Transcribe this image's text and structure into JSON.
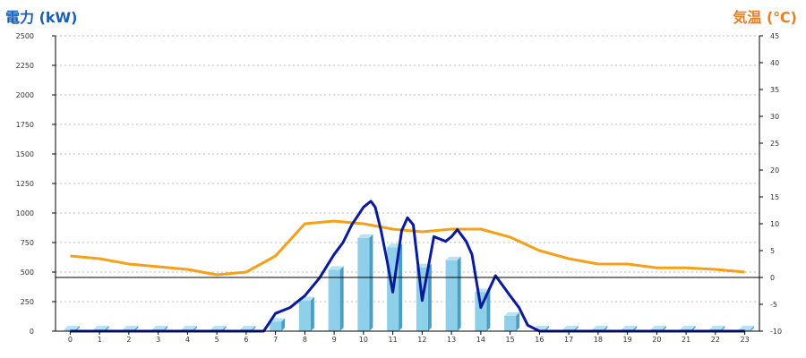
{
  "chart_data": {
    "type": "bar",
    "left_axis_title": "電力 (kW)",
    "right_axis_title": "気温 (℃)",
    "colors": {
      "left_title": "#1a5fb4",
      "right_title": "#e67e22",
      "bar_front": "#8ecfe9",
      "bar_side": "#4a9ec4",
      "bar_top": "#b9e3f3",
      "power_line": "#0a1a9c",
      "temp_line": "#f6a01a",
      "grid": "#bbbbbb",
      "axis": "#000000"
    },
    "categories": [
      "0",
      "1",
      "2",
      "3",
      "4",
      "5",
      "6",
      "7",
      "8",
      "9",
      "10",
      "11",
      "12",
      "13",
      "14",
      "15",
      "16",
      "17",
      "18",
      "19",
      "20",
      "21",
      "22",
      "23"
    ],
    "left_ticks": [
      "0",
      "250",
      "500",
      "750",
      "1000",
      "1250",
      "1500",
      "1750",
      "2000",
      "2250",
      "2500"
    ],
    "right_ticks": [
      "-10",
      "-5",
      "0",
      "5",
      "10",
      "15",
      "20",
      "25",
      "30",
      "35",
      "40",
      "45"
    ],
    "ylim_left": [
      0,
      2500
    ],
    "ylim_right": [
      -10,
      45
    ],
    "bars": [
      0,
      0,
      0,
      0,
      0,
      0,
      0,
      80,
      260,
      520,
      790,
      710,
      540,
      600,
      330,
      130,
      0,
      0,
      0,
      0,
      0,
      0,
      0,
      0
    ],
    "power_line": {
      "x": [
        0,
        1,
        2,
        3,
        4,
        5,
        6,
        6.6,
        7,
        7.5,
        8,
        8.5,
        9,
        9.3,
        9.6,
        10,
        10.25,
        10.4,
        10.6,
        10.8,
        11,
        11.3,
        11.5,
        11.7,
        12,
        12.4,
        12.8,
        13,
        13.2,
        13.5,
        13.7,
        14,
        14.5,
        15,
        15.3,
        15.6,
        16,
        17,
        18,
        19,
        20,
        21,
        22,
        23
      ],
      "y": [
        0,
        0,
        0,
        0,
        0,
        0,
        0,
        0,
        150,
        200,
        300,
        450,
        650,
        750,
        900,
        1050,
        1100,
        1050,
        850,
        600,
        330,
        850,
        960,
        900,
        260,
        800,
        760,
        800,
        860,
        760,
        650,
        200,
        470,
        300,
        200,
        50,
        0,
        0,
        0,
        0,
        0,
        0,
        0,
        0
      ]
    },
    "temperature": {
      "x": [
        0,
        1,
        2,
        3,
        4,
        5,
        6,
        7,
        8,
        9,
        10,
        11,
        12,
        13,
        14,
        15,
        16,
        17,
        18,
        19,
        20,
        21,
        22,
        23
      ],
      "y": [
        4,
        3.5,
        2.5,
        2,
        1.5,
        0.5,
        1,
        4,
        10,
        10.5,
        10,
        9,
        8.5,
        9,
        9,
        7.5,
        5,
        3.5,
        2.5,
        2.5,
        1.8,
        1.8,
        1.5,
        1
      ]
    }
  }
}
